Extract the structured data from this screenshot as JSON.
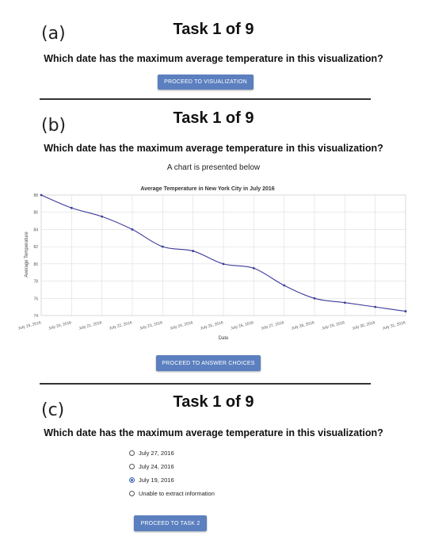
{
  "panels": [
    {
      "label": "(a)",
      "task_title": "Task 1 of 9",
      "question": "Which date has the maximum average temperature in this visualization?",
      "button": "PROCEED TO VISUALIZATION"
    },
    {
      "label": "(b)",
      "task_title": "Task 1 of 9",
      "question": "Which date has the maximum average temperature in this visualization?",
      "subcaption": "A chart is presented below",
      "button": "PROCEED TO ANSWER CHOICES"
    },
    {
      "label": "(c)",
      "task_title": "Task 1 of 9",
      "question": "Which date has the maximum average temperature in this visualization?",
      "options": [
        {
          "label": "July 27, 2016",
          "selected": false
        },
        {
          "label": "July 24, 2016",
          "selected": false
        },
        {
          "label": "July 19, 2016",
          "selected": true
        },
        {
          "label": "Unable to extract information",
          "selected": false
        }
      ],
      "button": "PROCEED TO TASK 2"
    }
  ],
  "colors": {
    "button": "#5b7fbf",
    "line": "#3b3b9a",
    "radio_selected": "#3a5fb0"
  },
  "chart_data": {
    "type": "line",
    "title": "Average Temperature in New York City in July 2016",
    "xlabel": "Date",
    "ylabel": "Average Temperature",
    "x": [
      "July 19, 2016",
      "July 20, 2016",
      "July 21, 2016",
      "July 22, 2016",
      "July 23, 2016",
      "July 24, 2016",
      "July 25, 2016",
      "July 26, 2016",
      "July 27, 2016",
      "July 28, 2016",
      "July 29, 2016",
      "July 30, 2016",
      "July 31, 2016"
    ],
    "values": [
      88,
      86.5,
      85.5,
      84,
      82,
      81.5,
      80,
      79.5,
      77.5,
      76,
      75.5,
      75,
      74.5
    ],
    "ylim": [
      74,
      88
    ],
    "yticks": [
      74,
      76,
      78,
      80,
      82,
      84,
      86,
      88
    ],
    "grid": true
  }
}
